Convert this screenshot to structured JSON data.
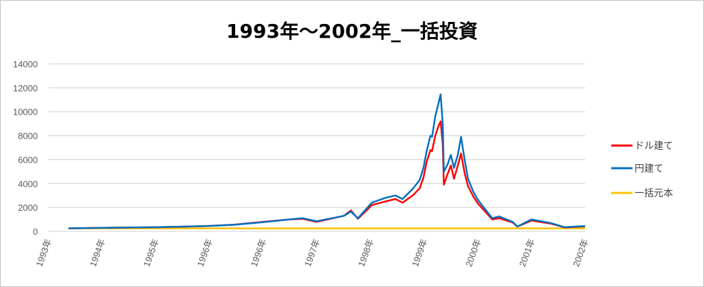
{
  "chart_data": {
    "type": "line",
    "title": "1993年～2002年_一括投資",
    "xlabel": "",
    "ylabel": "",
    "categories": [
      "1993年",
      "1994年",
      "1995年",
      "1996年",
      "1996年",
      "1997年",
      "1998年",
      "1999年",
      "2000年",
      "2001年",
      "2002年"
    ],
    "yticks": [
      0,
      2000,
      4000,
      6000,
      8000,
      10000,
      12000,
      14000
    ],
    "ylim": [
      0,
      14000
    ],
    "grid": true,
    "legend_position": "right",
    "x": [
      0.38,
      1.03,
      2.05,
      2.95,
      3.46,
      3.97,
      4.49,
      4.74,
      5.0,
      5.51,
      5.64,
      5.77,
      6.03,
      6.28,
      6.47,
      6.6,
      6.79,
      6.92,
      6.99,
      7.05,
      7.12,
      7.15,
      7.21,
      7.27,
      7.31,
      7.35,
      7.37,
      7.44,
      7.5,
      7.56,
      7.63,
      7.69,
      7.76,
      7.82,
      7.92,
      8.01,
      8.14,
      8.27,
      8.4,
      8.65,
      8.74,
      9.0,
      9.36,
      9.62,
      10.0
    ],
    "series": [
      {
        "name": "ドル建て",
        "color": "#ff0000",
        "values": [
          250,
          300,
          350,
          450,
          560,
          780,
          1000,
          1050,
          800,
          1300,
          1750,
          1050,
          2200,
          2500,
          2700,
          2400,
          3000,
          3600,
          4500,
          5800,
          6800,
          6700,
          8000,
          8800,
          9200,
          7300,
          3900,
          4800,
          5500,
          4400,
          5500,
          6500,
          4800,
          3800,
          2900,
          2300,
          1650,
          1000,
          1100,
          750,
          400,
          900,
          650,
          330,
          420
        ]
      },
      {
        "name": "円建て",
        "color": "#0070c0",
        "values": [
          250,
          300,
          350,
          450,
          550,
          750,
          1000,
          1100,
          850,
          1300,
          1650,
          1100,
          2400,
          2800,
          3000,
          2700,
          3550,
          4300,
          5300,
          6700,
          8000,
          7900,
          9600,
          10700,
          11450,
          9000,
          5000,
          5600,
          6400,
          5300,
          6400,
          7900,
          5900,
          4400,
          3300,
          2600,
          1850,
          1100,
          1250,
          800,
          400,
          1000,
          700,
          350,
          450
        ]
      },
      {
        "name": "一括元本",
        "color": "#ffc000",
        "values": [
          250,
          250,
          250,
          250,
          250,
          250,
          250,
          250,
          250,
          250,
          250,
          250,
          250,
          250,
          250,
          250,
          250,
          250,
          250,
          250,
          250,
          250,
          250,
          250,
          250,
          250,
          250,
          250,
          250,
          250,
          250,
          250,
          250,
          250,
          250,
          250,
          250,
          250,
          250,
          250,
          250,
          250,
          250,
          250,
          250
        ]
      }
    ]
  }
}
